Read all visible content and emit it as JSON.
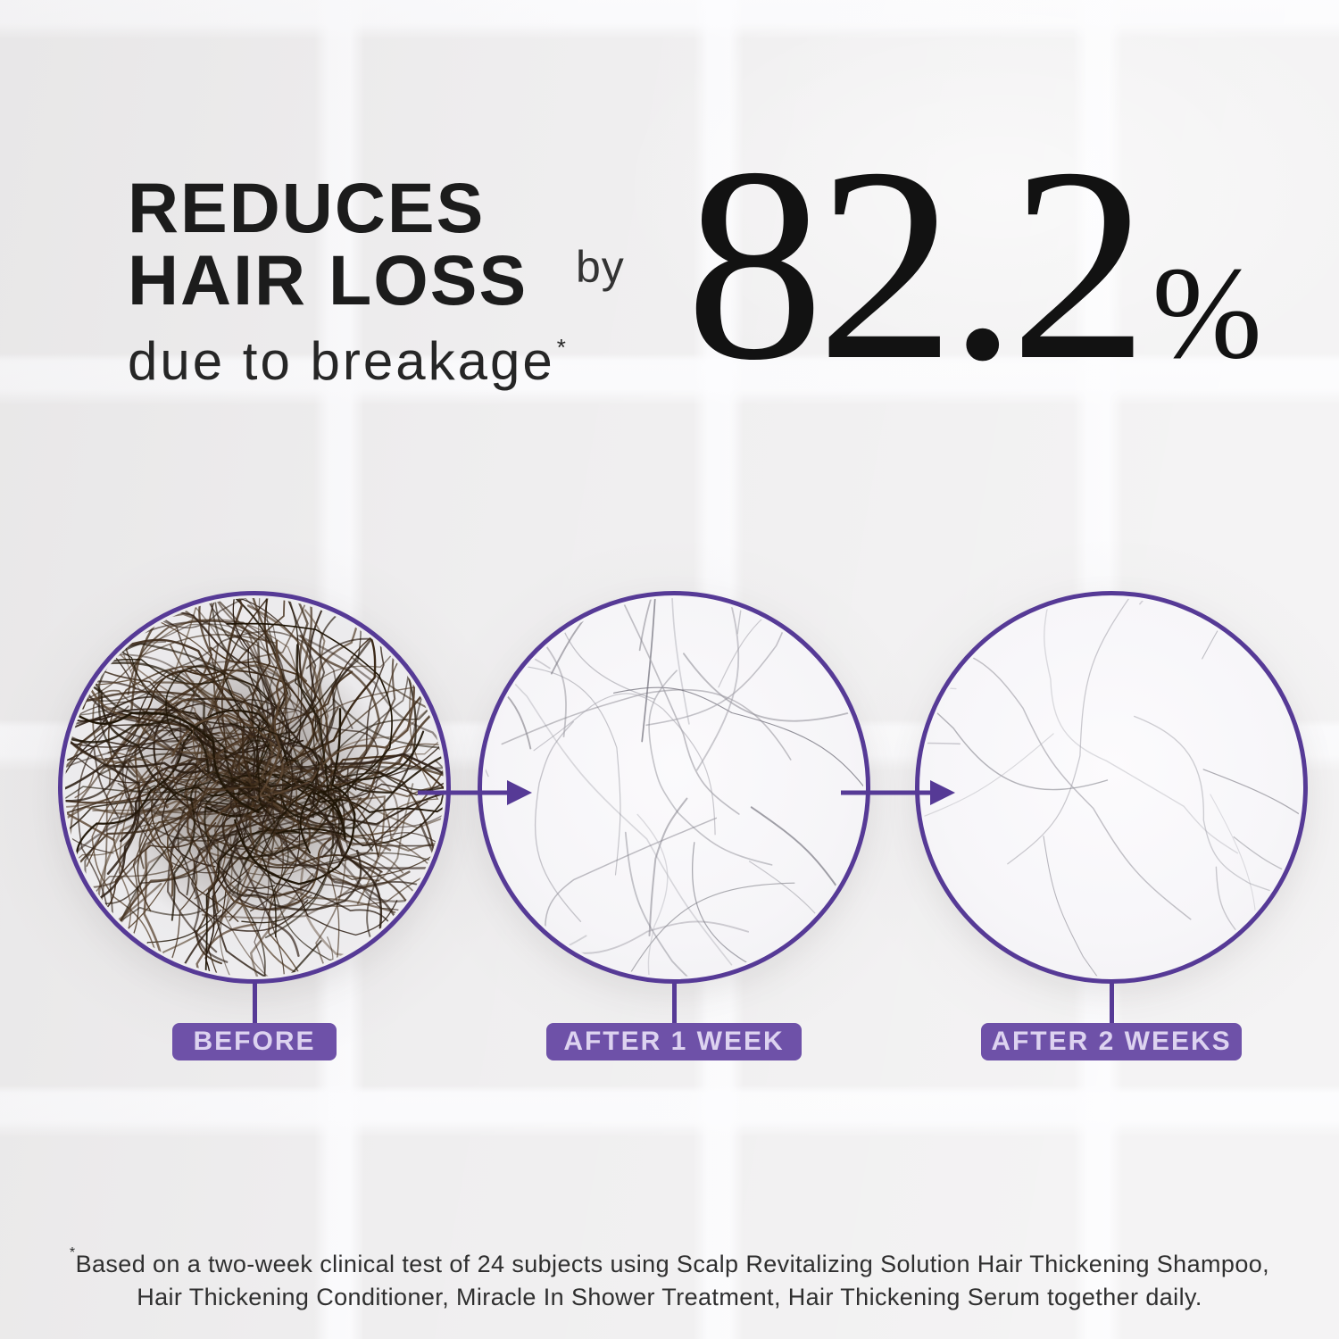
{
  "headline": {
    "line1": "REDUCES",
    "line2": "HAIR LOSS",
    "line3": "due to breakage",
    "footnote_marker": "*"
  },
  "stat": {
    "prefix": "by",
    "value": "82.2",
    "unit": "%"
  },
  "comparison": {
    "panels": [
      {
        "label": "BEFORE",
        "photo": "dense-dark-hair-clump"
      },
      {
        "label": "AFTER 1 WEEK",
        "photo": "sparse-light-hair-strands"
      },
      {
        "label": "AFTER 2 WEEKS",
        "photo": "minimal-light-hair-strands"
      }
    ]
  },
  "disclaimer": {
    "footnote_marker": "*",
    "line1": "Based on a two-week clinical test of 24 subjects using Scalp Revitalizing Solution Hair Thickening Shampoo,",
    "line2": "Hair Thickening Conditioner, Miracle In Shower Treatment, Hair Thickening Serum together daily."
  },
  "colors": {
    "accent_purple": "#563a96",
    "label_purple": "#6e51a8",
    "label_text": "#ddd3f0",
    "headline_text": "#1c1c1c",
    "hair_dark_brown": "#3b2918",
    "hair_light_gray": "#95949c"
  }
}
